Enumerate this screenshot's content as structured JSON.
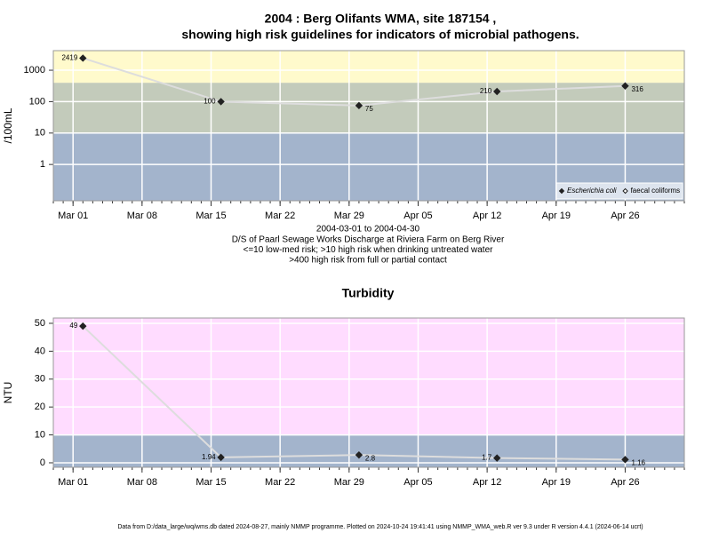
{
  "chart_data": [
    {
      "type": "line",
      "title": [
        "2004 : Berg Olifants WMA, site 187154 ,",
        "showing high risk guidelines for indicators of microbial pathogens."
      ],
      "y_label": "/100mL",
      "notes": [
        "2004-03-01 to 2004-04-30",
        "D/S of Paarl Sewage Works Discharge at Riviera Farm on Berg River",
        "<=10 low-med risk; >10 high risk when drinking untreated water",
        ">400 high risk from full or partial contact"
      ],
      "x": [
        "2004-03-02",
        "2004-03-16",
        "2004-03-30",
        "2004-04-13",
        "2004-04-26"
      ],
      "series": [
        {
          "name": "Escherichia coli",
          "color": "#222222",
          "marker": "filled",
          "values": [
            2419,
            100,
            75,
            210,
            316
          ]
        },
        {
          "name": "faecal coliforms",
          "color": "#222222",
          "marker": "hollow",
          "values": [
            null,
            null,
            null,
            null,
            null
          ]
        }
      ],
      "line_color": "#dddddd",
      "log_y": true,
      "ylim": [
        0.07,
        4200
      ],
      "yticks": [
        1,
        10,
        100,
        1000
      ],
      "xlim": [
        "2004-02-28",
        "2004-05-02"
      ],
      "xticks": [
        {
          "value": "2004-03-01",
          "label": "Mar 01"
        },
        {
          "value": "2004-03-08",
          "label": "Mar 08"
        },
        {
          "value": "2004-03-15",
          "label": "Mar 15"
        },
        {
          "value": "2004-03-22",
          "label": "Mar 22"
        },
        {
          "value": "2004-03-29",
          "label": "Mar 29"
        },
        {
          "value": "2004-04-05",
          "label": "Apr 05"
        },
        {
          "value": "2004-04-12",
          "label": "Apr 12"
        },
        {
          "value": "2004-04-19",
          "label": "Apr 19"
        },
        {
          "value": "2004-04-26",
          "label": "Apr 26"
        }
      ],
      "bands": [
        {
          "to": 10,
          "color": "#a3b4cc"
        },
        {
          "from": 10,
          "to": 400,
          "color": "#c3cbbb"
        },
        {
          "from": 400,
          "color": "#fffacc"
        }
      ],
      "grid": true,
      "legend": "lower right"
    },
    {
      "type": "line",
      "title": "Turbidity",
      "y_label": "NTU",
      "x": [
        "2004-03-02",
        "2004-03-16",
        "2004-03-30",
        "2004-04-13",
        "2004-04-26"
      ],
      "values": [
        49,
        1.94,
        2.8,
        1.7,
        1.16
      ],
      "color": "#222222",
      "line_color": "#dddddd",
      "log_y": false,
      "ylim": [
        -1.6,
        51.9
      ],
      "yticks": [
        0,
        10,
        20,
        30,
        40,
        50
      ],
      "xlim": [
        "2004-02-28",
        "2004-05-02"
      ],
      "xticks": [
        {
          "value": "2004-03-01",
          "label": "Mar 01"
        },
        {
          "value": "2004-03-08",
          "label": "Mar 08"
        },
        {
          "value": "2004-03-15",
          "label": "Mar 15"
        },
        {
          "value": "2004-03-22",
          "label": "Mar 22"
        },
        {
          "value": "2004-03-29",
          "label": "Mar 29"
        },
        {
          "value": "2004-04-05",
          "label": "Apr 05"
        },
        {
          "value": "2004-04-12",
          "label": "Apr 12"
        },
        {
          "value": "2004-04-19",
          "label": "Apr 19"
        },
        {
          "value": "2004-04-26",
          "label": "Apr 26"
        }
      ],
      "bands": [
        {
          "to": 10,
          "color": "#a3b4cc"
        },
        {
          "from": 10,
          "color": "#ffdcff"
        }
      ],
      "grid": true
    }
  ],
  "footer": "Data from D:/data_large/wq/wms.db dated 2024-08-27, mainly NMMP programme. Plotted on 2024-10-24 19:41:41 using NMMP_WMA_web.R ver 9.3 under R version 4.4.1 (2024-06-14 ucrt)"
}
